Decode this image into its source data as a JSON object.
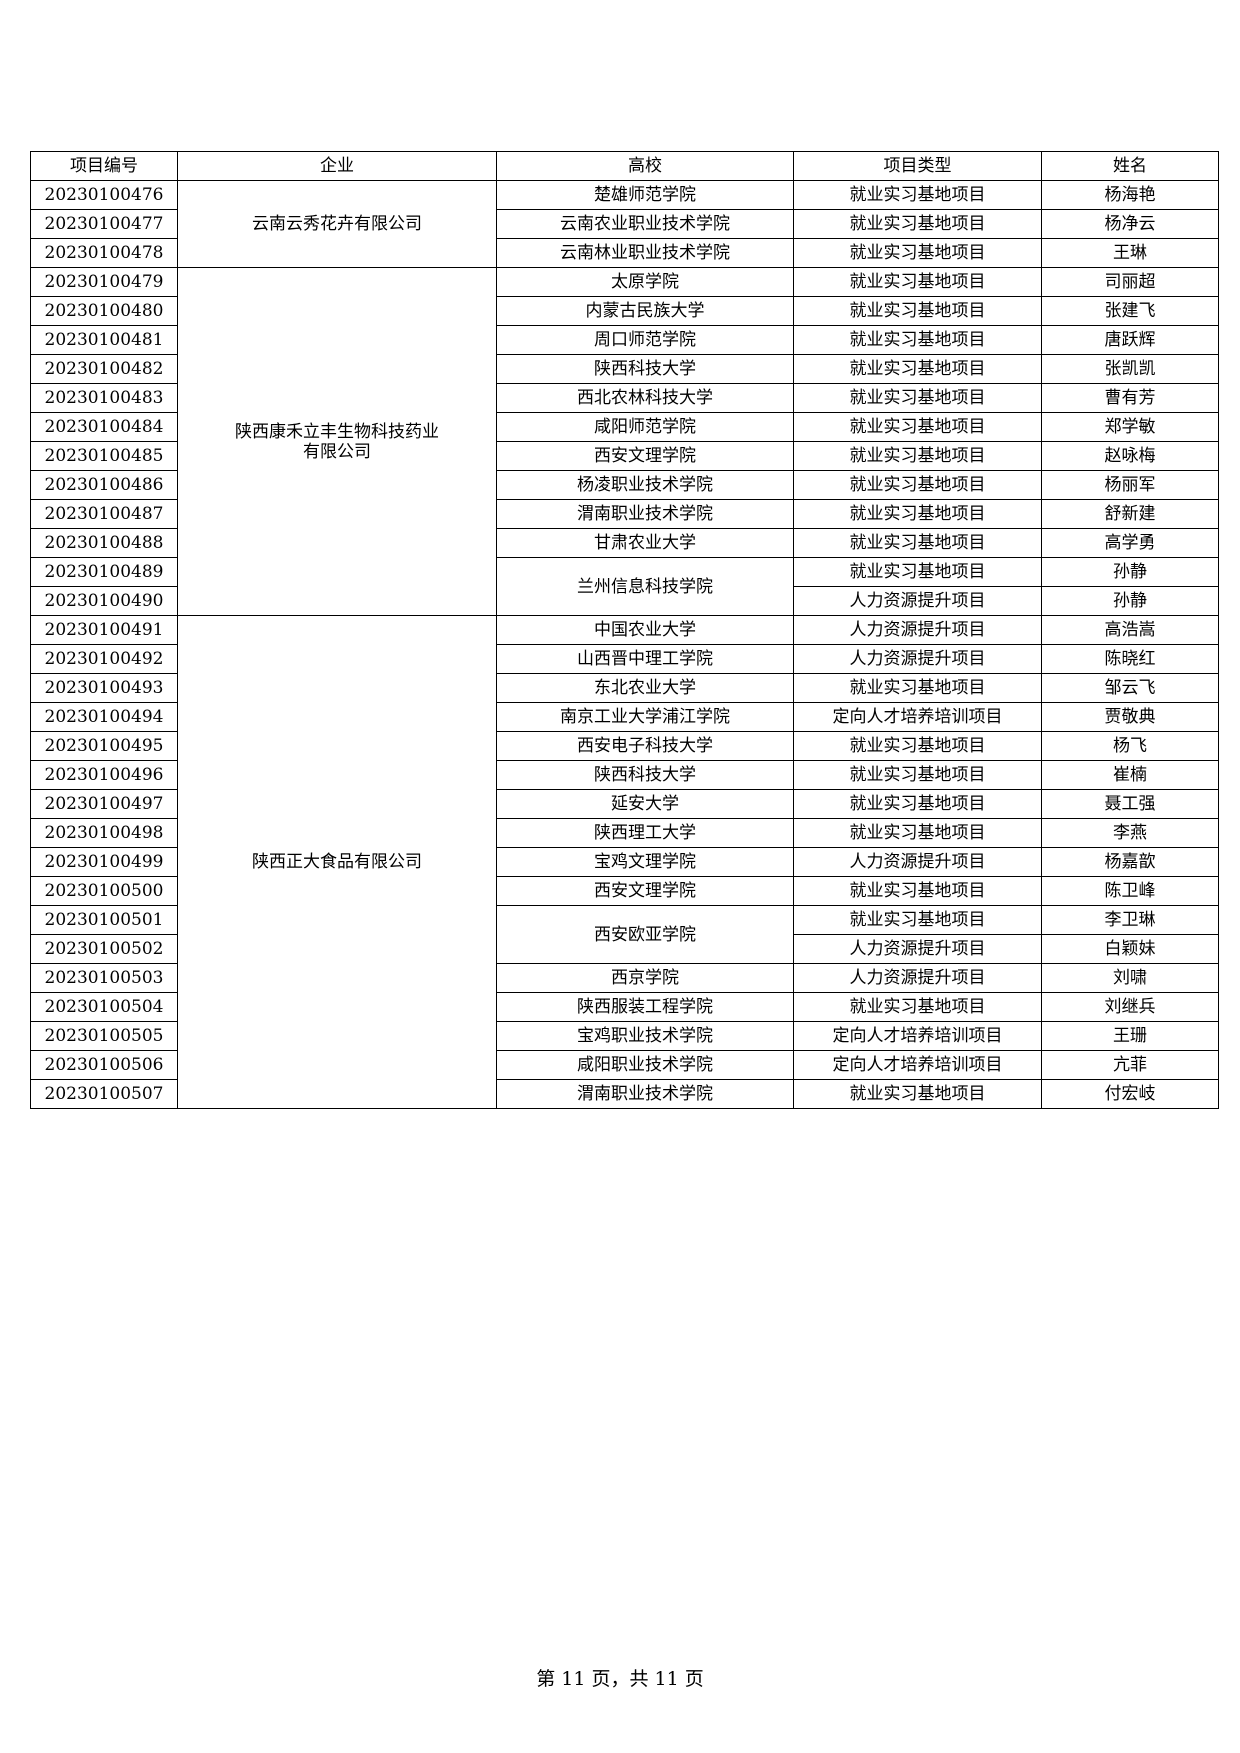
{
  "table": {
    "headers": [
      "项目编号",
      "企业",
      "高校",
      "项目类型",
      "姓名"
    ],
    "rows": [
      {
        "id": "20230100476",
        "enterprise": "云南云秀花卉有限公司",
        "school": "楚雄师范学院",
        "type": "就业实习基地项目",
        "name": "杨海艳"
      },
      {
        "id": "20230100477",
        "enterprise": "云南云秀花卉有限公司",
        "school": "云南农业职业技术学院",
        "type": "就业实习基地项目",
        "name": "杨净云"
      },
      {
        "id": "20230100478",
        "enterprise": "云南云秀花卉有限公司",
        "school": "云南林业职业技术学院",
        "type": "就业实习基地项目",
        "name": "王琳"
      },
      {
        "id": "20230100479",
        "enterprise": "陕西康禾立丰生物科技药业有限公司",
        "school": "太原学院",
        "type": "就业实习基地项目",
        "name": "司丽超"
      },
      {
        "id": "20230100480",
        "enterprise": "陕西康禾立丰生物科技药业有限公司",
        "school": "内蒙古民族大学",
        "type": "就业实习基地项目",
        "name": "张建飞"
      },
      {
        "id": "20230100481",
        "enterprise": "陕西康禾立丰生物科技药业有限公司",
        "school": "周口师范学院",
        "type": "就业实习基地项目",
        "name": "唐跃辉"
      },
      {
        "id": "20230100482",
        "enterprise": "陕西康禾立丰生物科技药业有限公司",
        "school": "陕西科技大学",
        "type": "就业实习基地项目",
        "name": "张凯凯"
      },
      {
        "id": "20230100483",
        "enterprise": "陕西康禾立丰生物科技药业有限公司",
        "school": "西北农林科技大学",
        "type": "就业实习基地项目",
        "name": "曹有芳"
      },
      {
        "id": "20230100484",
        "enterprise": "陕西康禾立丰生物科技药业有限公司",
        "school": "咸阳师范学院",
        "type": "就业实习基地项目",
        "name": "郑学敏"
      },
      {
        "id": "20230100485",
        "enterprise": "陕西康禾立丰生物科技药业有限公司",
        "school": "西安文理学院",
        "type": "就业实习基地项目",
        "name": "赵咏梅"
      },
      {
        "id": "20230100486",
        "enterprise": "陕西康禾立丰生物科技药业有限公司",
        "school": "杨凌职业技术学院",
        "type": "就业实习基地项目",
        "name": "杨丽军"
      },
      {
        "id": "20230100487",
        "enterprise": "陕西康禾立丰生物科技药业有限公司",
        "school": "渭南职业技术学院",
        "type": "就业实习基地项目",
        "name": "舒新建"
      },
      {
        "id": "20230100488",
        "enterprise": "陕西康禾立丰生物科技药业有限公司",
        "school": "甘肃农业大学",
        "type": "就业实习基地项目",
        "name": "高学勇"
      },
      {
        "id": "20230100489",
        "enterprise": "陕西康禾立丰生物科技药业有限公司",
        "school": "兰州信息科技学院",
        "type": "就业实习基地项目",
        "name": "孙静"
      },
      {
        "id": "20230100490",
        "enterprise": "陕西康禾立丰生物科技药业有限公司",
        "school": "兰州信息科技学院",
        "type": "人力资源提升项目",
        "name": "孙静"
      },
      {
        "id": "20230100491",
        "enterprise": "陕西正大食品有限公司",
        "school": "中国农业大学",
        "type": "人力资源提升项目",
        "name": "高浩嵩"
      },
      {
        "id": "20230100492",
        "enterprise": "陕西正大食品有限公司",
        "school": "山西晋中理工学院",
        "type": "人力资源提升项目",
        "name": "陈晓红"
      },
      {
        "id": "20230100493",
        "enterprise": "陕西正大食品有限公司",
        "school": "东北农业大学",
        "type": "就业实习基地项目",
        "name": "邹云飞"
      },
      {
        "id": "20230100494",
        "enterprise": "陕西正大食品有限公司",
        "school": "南京工业大学浦江学院",
        "type": "定向人才培养培训项目",
        "name": "贾敬典"
      },
      {
        "id": "20230100495",
        "enterprise": "陕西正大食品有限公司",
        "school": "西安电子科技大学",
        "type": "就业实习基地项目",
        "name": "杨飞"
      },
      {
        "id": "20230100496",
        "enterprise": "陕西正大食品有限公司",
        "school": "陕西科技大学",
        "type": "就业实习基地项目",
        "name": "崔楠"
      },
      {
        "id": "20230100497",
        "enterprise": "陕西正大食品有限公司",
        "school": "延安大学",
        "type": "就业实习基地项目",
        "name": "聂工强"
      },
      {
        "id": "20230100498",
        "enterprise": "陕西正大食品有限公司",
        "school": "陕西理工大学",
        "type": "就业实习基地项目",
        "name": "李燕"
      },
      {
        "id": "20230100499",
        "enterprise": "陕西正大食品有限公司",
        "school": "宝鸡文理学院",
        "type": "人力资源提升项目",
        "name": "杨嘉歆"
      },
      {
        "id": "20230100500",
        "enterprise": "陕西正大食品有限公司",
        "school": "西安文理学院",
        "type": "就业实习基地项目",
        "name": "陈卫峰"
      },
      {
        "id": "20230100501",
        "enterprise": "陕西正大食品有限公司",
        "school": "西安欧亚学院",
        "type": "就业实习基地项目",
        "name": "李卫琳"
      },
      {
        "id": "20230100502",
        "enterprise": "陕西正大食品有限公司",
        "school": "西安欧亚学院",
        "type": "人力资源提升项目",
        "name": "白颖妹"
      },
      {
        "id": "20230100503",
        "enterprise": "陕西正大食品有限公司",
        "school": "西京学院",
        "type": "人力资源提升项目",
        "name": "刘啸"
      },
      {
        "id": "20230100504",
        "enterprise": "陕西正大食品有限公司",
        "school": "陕西服装工程学院",
        "type": "就业实习基地项目",
        "name": "刘继兵"
      },
      {
        "id": "20230100505",
        "enterprise": "陕西正大食品有限公司",
        "school": "宝鸡职业技术学院",
        "type": "定向人才培养培训项目",
        "name": "王珊"
      },
      {
        "id": "20230100506",
        "enterprise": "陕西正大食品有限公司",
        "school": "咸阳职业技术学院",
        "type": "定向人才培养培训项目",
        "name": "亢菲"
      },
      {
        "id": "20230100507",
        "enterprise": "陕西正大食品有限公司",
        "school": "渭南职业技术学院",
        "type": "就业实习基地项目",
        "name": "付宏岐"
      }
    ]
  },
  "footer": {
    "page_label": "第 11 页，共 11 页"
  }
}
